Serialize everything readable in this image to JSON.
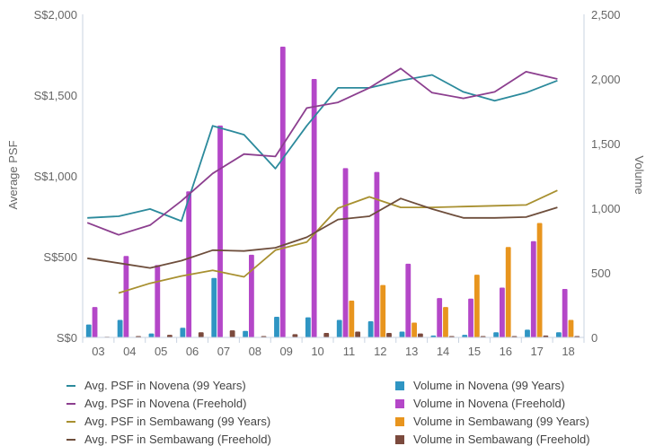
{
  "chart_data": {
    "type": "bar+line",
    "categories": [
      "03",
      "04",
      "05",
      "06",
      "07",
      "08",
      "09",
      "10",
      "11",
      "12",
      "13",
      "14",
      "15",
      "16",
      "17",
      "18"
    ],
    "y_left": {
      "label": "Average PSF",
      "ticks": [
        "S$0",
        "S$500",
        "S$1,000",
        "S$1,500",
        "S$2,000"
      ],
      "range": [
        0,
        2000
      ]
    },
    "y_right": {
      "label": "Volume",
      "ticks": [
        "0",
        "500",
        "1,000",
        "1,500",
        "2,000",
        "2,500"
      ],
      "range": [
        0,
        2500
      ]
    },
    "lines": [
      {
        "name": "Avg. PSF in Novena (99 Years)",
        "color": "#2c8a9c",
        "values": [
          740,
          750,
          795,
          720,
          1310,
          1255,
          1045,
          1310,
          1545,
          1545,
          1590,
          1625,
          1520,
          1465,
          1515,
          1590
        ]
      },
      {
        "name": "Avg. PSF in Novena (Freehold)",
        "color": "#8c3f8f",
        "values": [
          710,
          635,
          695,
          845,
          1015,
          1135,
          1120,
          1420,
          1455,
          1545,
          1665,
          1515,
          1480,
          1520,
          1645,
          1600
        ]
      },
      {
        "name": "Avg. PSF in Sembawang (99 Years)",
        "color": "#a89030",
        "values": [
          null,
          275,
          335,
          380,
          415,
          375,
          540,
          590,
          800,
          870,
          805,
          805,
          810,
          815,
          820,
          910
        ]
      },
      {
        "name": "Avg. PSF in Sembawang (Freehold)",
        "color": "#6e4e3c",
        "values": [
          490,
          460,
          430,
          475,
          540,
          535,
          555,
          620,
          730,
          750,
          860,
          795,
          740,
          740,
          745,
          805
        ]
      }
    ],
    "bars": [
      {
        "name": "Volume in Novena (99 Years)",
        "color": "#2f95c3",
        "values": [
          100,
          135,
          30,
          75,
          460,
          50,
          160,
          155,
          135,
          125,
          45,
          15,
          20,
          40,
          60,
          40
        ]
      },
      {
        "name": "Volume in Novena (Freehold)",
        "color": "#b447c8",
        "values": [
          235,
          630,
          560,
          1130,
          1640,
          640,
          2250,
          2000,
          1310,
          1280,
          570,
          305,
          300,
          385,
          745,
          375
        ]
      },
      {
        "name": "Volume in Sembawang (99 Years)",
        "color": "#e8951e",
        "values": [
          0,
          0,
          0,
          0,
          0,
          0,
          0,
          0,
          285,
          405,
          115,
          235,
          485,
          700,
          885,
          135
        ]
      },
      {
        "name": "Volume in Sembawang (Freehold)",
        "color": "#7b4a3d",
        "values": [
          5,
          10,
          20,
          40,
          55,
          10,
          25,
          35,
          45,
          35,
          30,
          10,
          10,
          10,
          15,
          10
        ]
      }
    ],
    "legend_position": "bottom",
    "grid": false
  }
}
